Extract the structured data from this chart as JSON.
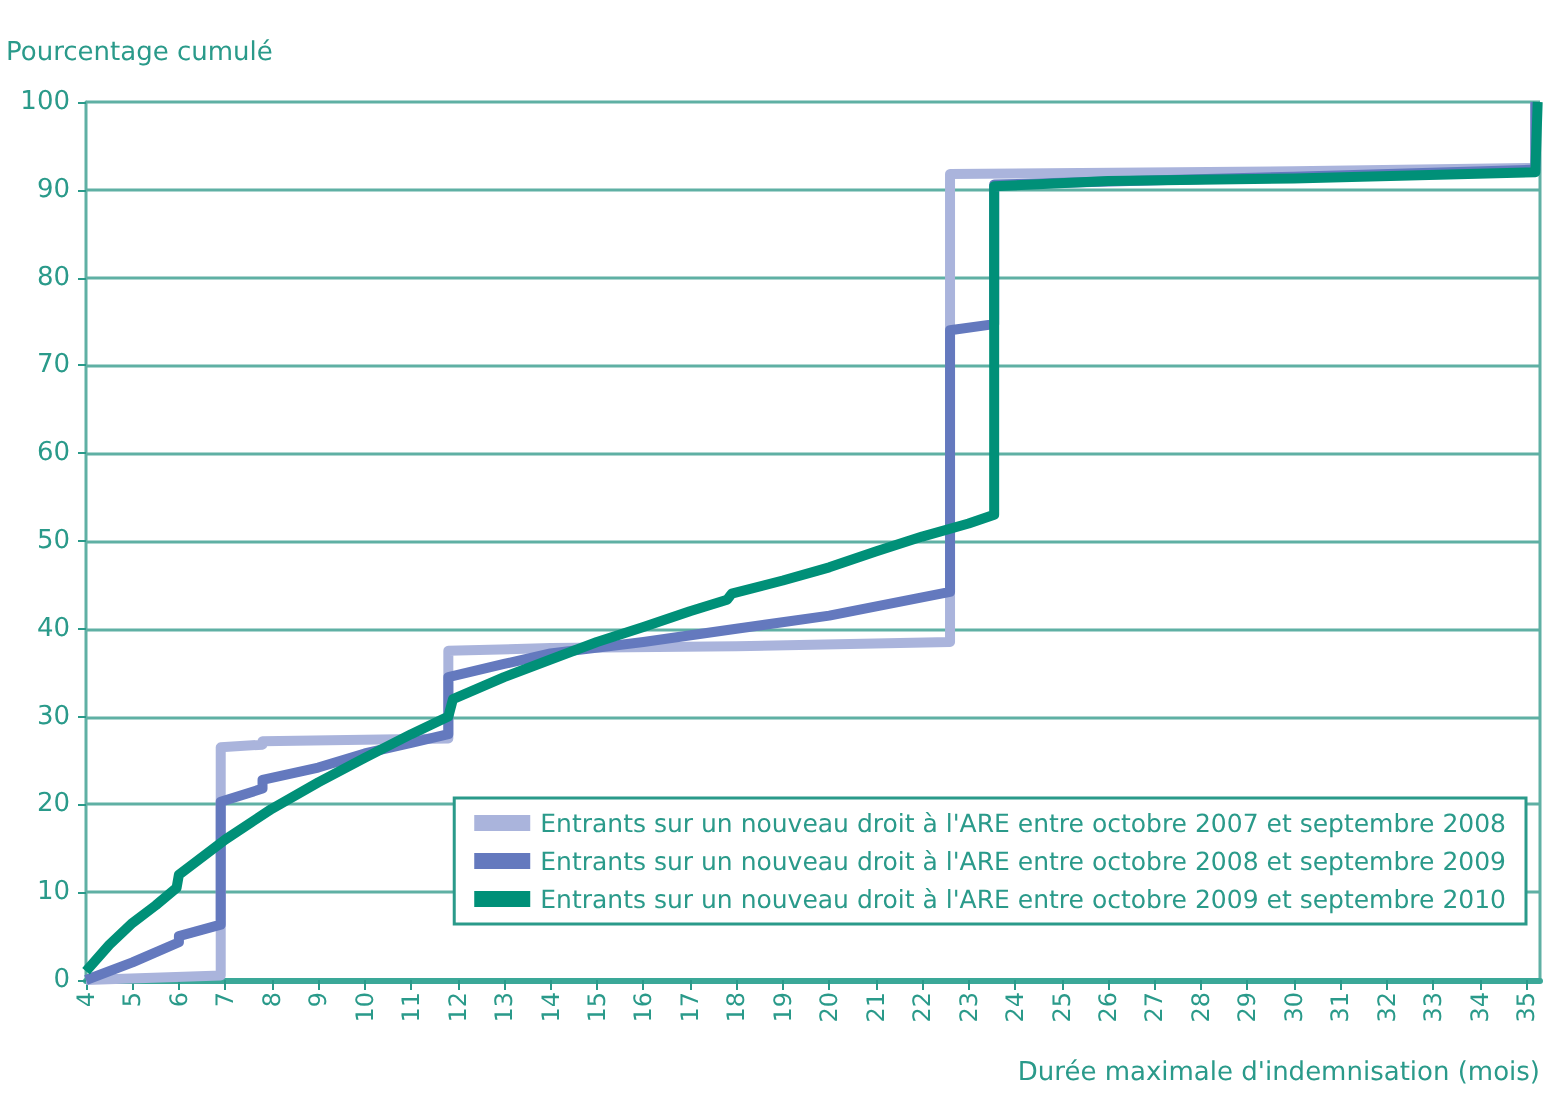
{
  "chart_data": {
    "type": "line",
    "xlabel": "Durée maximale d'indemnisation (mois)",
    "ylabel": "Pourcentage cumulé",
    "xlim": [
      4,
      35.3
    ],
    "xticks": [
      4,
      5,
      6,
      7,
      8,
      9,
      10,
      11,
      12,
      13,
      14,
      15,
      16,
      17,
      18,
      19,
      20,
      21,
      22,
      23,
      24,
      25,
      26,
      27,
      28,
      29,
      30,
      31,
      32,
      33,
      34,
      35
    ],
    "ylim": [
      0,
      100
    ],
    "yticks": [
      0,
      10,
      20,
      30,
      40,
      50,
      60,
      70,
      80,
      90,
      100
    ],
    "grid": "y",
    "legend": "bottom right",
    "marker": "none",
    "line_style": "solid",
    "series": [
      {
        "name": "Entrants sur un nouveau droit à l'ARE entre octobre 2007 et septembre 2008",
        "color": "#aab4dc",
        "x": [
          4,
          6.9,
          6.9,
          7.8,
          7.8,
          11.8,
          11.8,
          14,
          18,
          22.6,
          22.6,
          30,
          35.2,
          35.2
        ],
        "values": [
          0,
          0.5,
          26.5,
          26.8,
          27.2,
          27.5,
          37.5,
          37.8,
          38,
          38.5,
          91.8,
          92.1,
          92.5,
          100
        ]
      },
      {
        "name": "Entrants sur un nouveau droit à l'ARE entre octobre 2008 et septembre 2009",
        "color": "#6479be",
        "x": [
          4,
          5,
          6,
          6,
          6.9,
          6.9,
          7.8,
          7.8,
          9,
          10,
          11,
          11.8,
          11.8,
          13,
          14,
          16,
          18,
          20,
          22.6,
          22.6,
          23.55,
          23.55,
          30,
          35.2,
          35.2
        ],
        "values": [
          0,
          2,
          4.3,
          5,
          6.3,
          20.3,
          21.8,
          22.8,
          24.2,
          25.8,
          27,
          28,
          34.5,
          36,
          37.2,
          38.5,
          40,
          41.5,
          44.2,
          74,
          74.7,
          90.6,
          91.5,
          92.3,
          100
        ]
      },
      {
        "name": "Entrants sur un nouveau droit à l'ARE entre octobre 2009 et septembre 2010",
        "color": "#009078",
        "x": [
          4,
          4.5,
          5,
          5.5,
          5.95,
          6,
          7,
          8,
          9,
          10,
          11,
          11.8,
          11.9,
          13,
          14,
          15,
          16,
          17,
          17.8,
          17.9,
          19,
          20,
          21,
          22,
          23,
          23.55,
          23.55,
          26,
          30,
          35.2,
          35.25
        ],
        "values": [
          1,
          4,
          6.5,
          8.5,
          10.5,
          12,
          16,
          19.5,
          22.5,
          25.3,
          28,
          30,
          32,
          34.5,
          36.5,
          38.5,
          40.2,
          42,
          43.3,
          44,
          45.5,
          47,
          48.8,
          50.5,
          52,
          53,
          90.4,
          91,
          91.3,
          92,
          100
        ]
      }
    ]
  }
}
